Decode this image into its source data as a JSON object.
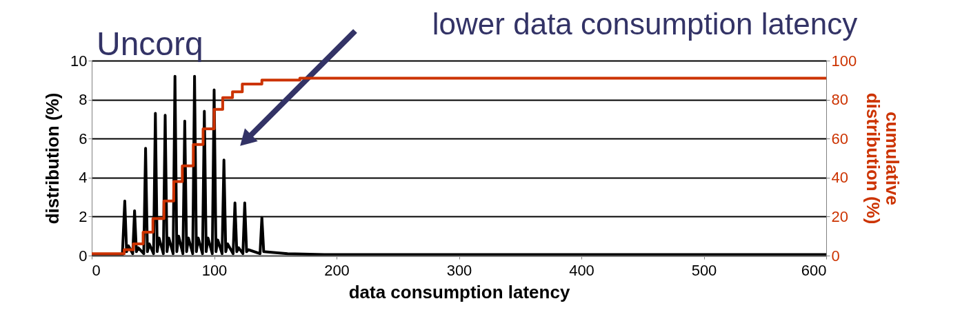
{
  "chart_data": {
    "type": "line",
    "title": "Uncorq",
    "xlabel": "data consumption latency",
    "ylabel": "distribution (%)",
    "y2label": "cumulative distribution (%)",
    "annotations": [
      "lower data consumption latency"
    ],
    "xlim": [
      0,
      600
    ],
    "xticks": [
      0,
      100,
      200,
      300,
      400,
      500,
      600
    ],
    "ylim": [
      0,
      10
    ],
    "yticks": [
      0,
      2,
      4,
      6,
      8,
      10
    ],
    "y2lim": [
      0,
      100
    ],
    "y2ticks": [
      0,
      20,
      40,
      60,
      80,
      100
    ],
    "grid": "y",
    "marker": "none",
    "line_style": "solid",
    "series": [
      {
        "color": "#000000",
        "x": [
          0,
          25,
          27,
          28.5,
          30,
          33.5,
          35,
          36.5,
          38,
          42.5,
          44,
          45.5,
          47,
          50.5,
          52,
          53.5,
          55,
          58.5,
          60,
          61.5,
          63,
          66.5,
          68,
          69.5,
          71,
          74.5,
          76,
          77.5,
          79,
          82.5,
          84,
          85.5,
          87,
          90.5,
          92,
          93.5,
          95,
          98.5,
          100,
          101.5,
          103,
          106.5,
          108,
          109.5,
          111,
          115.5,
          117,
          118.5,
          120,
          123.5,
          125,
          126.5,
          128,
          137.5,
          139,
          140.5,
          160,
          190,
          600
        ],
        "values": [
          0,
          0,
          2.8,
          0.2,
          0.5,
          0.1,
          2.3,
          0.2,
          0.4,
          0.1,
          5.5,
          0.2,
          0.6,
          0.1,
          7.3,
          0.2,
          0.9,
          0.1,
          7.2,
          0.2,
          0.9,
          0.1,
          9.2,
          0.2,
          1.0,
          0.1,
          6.9,
          0.2,
          0.9,
          0.1,
          9.2,
          0.2,
          0.9,
          0.1,
          7.4,
          0.2,
          0.9,
          0.1,
          8.5,
          0.2,
          0.8,
          0.1,
          4.9,
          0.2,
          0.6,
          0.1,
          2.7,
          0.2,
          0.4,
          0.1,
          2.7,
          0.2,
          0.3,
          0.1,
          1.95,
          0.2,
          0.1,
          0.05,
          0.05
        ]
      },
      {
        "type": "step",
        "axis": "y2",
        "color": "#cc3300",
        "x": [
          0,
          26.5,
          34,
          42,
          50,
          59,
          67,
          74,
          83,
          91,
          100,
          107,
          115,
          123,
          139,
          170,
          600
        ],
        "values": [
          1,
          3,
          6,
          12,
          19,
          28,
          38,
          46,
          57,
          65,
          75,
          81,
          84,
          88,
          90,
          91,
          91
        ]
      }
    ]
  }
}
